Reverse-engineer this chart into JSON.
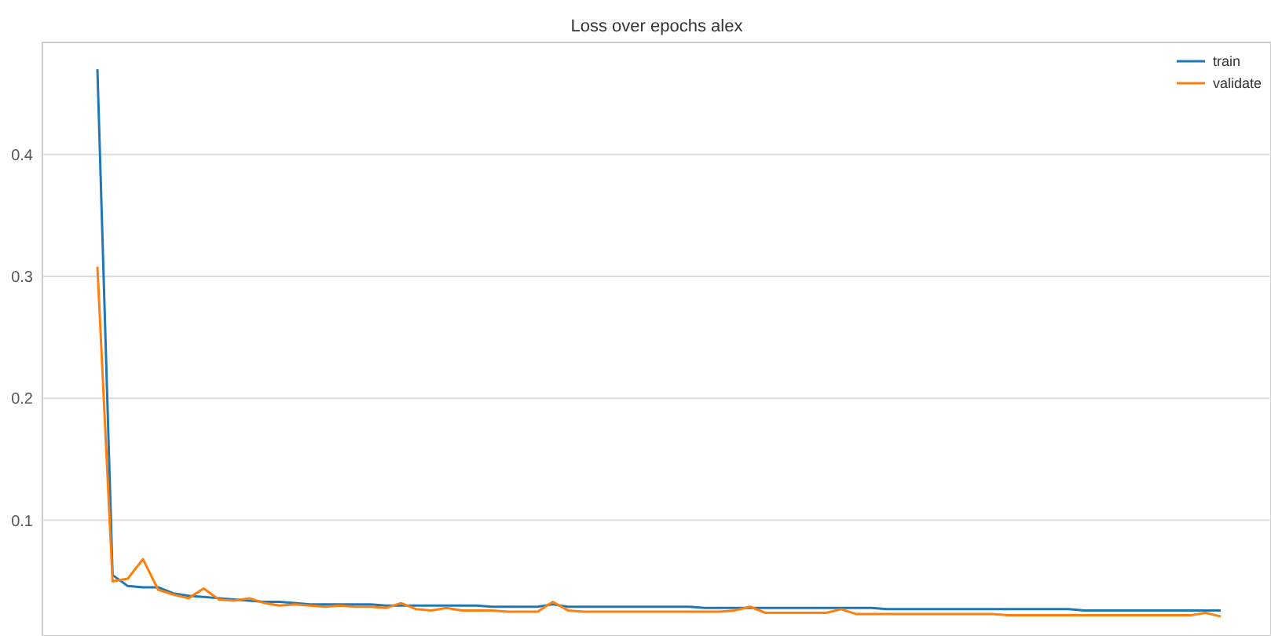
{
  "chart_data": {
    "type": "line",
    "title": "Loss over epochs alex",
    "categories": [
      null,
      null,
      null,
      null,
      null,
      null,
      null,
      null,
      null,
      null,
      null,
      null,
      null,
      null,
      null,
      null,
      null,
      null,
      null,
      null,
      null,
      null,
      null,
      null,
      null,
      null,
      null,
      null,
      null,
      null,
      null,
      null,
      null,
      null,
      null,
      null,
      null,
      null,
      null,
      null,
      null,
      null,
      null,
      null,
      null,
      null,
      null,
      null,
      null,
      null,
      null,
      null,
      null,
      null,
      null,
      null,
      null,
      null,
      null,
      null,
      null,
      null,
      null,
      null,
      null,
      null,
      null,
      null,
      null,
      null,
      null,
      null,
      null,
      null,
      null
    ],
    "ylim": [
      0.005,
      0.492
    ],
    "yticks": [
      0.1,
      0.2,
      0.3,
      0.4
    ],
    "grid": "y",
    "legend": "top right",
    "series": [
      {
        "name": "train",
        "color": "#1f77b4",
        "values": [
          0.47,
          0.055,
          0.046,
          0.045,
          0.045,
          0.04,
          0.038,
          0.037,
          0.036,
          0.035,
          0.034,
          0.033,
          0.033,
          0.032,
          0.031,
          0.031,
          0.031,
          0.031,
          0.031,
          0.03,
          0.03,
          0.03,
          0.03,
          0.03,
          0.03,
          0.03,
          0.029,
          0.029,
          0.029,
          0.029,
          0.031,
          0.029,
          0.029,
          0.029,
          0.029,
          0.029,
          0.029,
          0.029,
          0.029,
          0.029,
          0.028,
          0.028,
          0.028,
          0.028,
          0.028,
          0.028,
          0.028,
          0.028,
          0.028,
          0.028,
          0.028,
          0.028,
          0.027,
          0.027,
          0.027,
          0.027,
          0.027,
          0.027,
          0.027,
          0.027,
          0.027,
          0.027,
          0.027,
          0.027,
          0.027,
          0.026,
          0.026,
          0.026,
          0.026,
          0.026,
          0.026,
          0.026,
          0.026,
          0.026,
          0.026
        ]
      },
      {
        "name": "validate",
        "color": "#ff7f0e",
        "values": [
          0.308,
          0.05,
          0.052,
          0.068,
          0.043,
          0.039,
          0.036,
          0.044,
          0.035,
          0.034,
          0.036,
          0.032,
          0.03,
          0.031,
          0.03,
          0.029,
          0.03,
          0.029,
          0.029,
          0.028,
          0.032,
          0.027,
          0.026,
          0.028,
          0.026,
          0.026,
          0.026,
          0.025,
          0.025,
          0.025,
          0.033,
          0.026,
          0.025,
          0.025,
          0.025,
          0.025,
          0.025,
          0.025,
          0.025,
          0.025,
          0.025,
          0.025,
          0.026,
          0.029,
          0.024,
          0.024,
          0.024,
          0.024,
          0.024,
          0.027,
          0.023,
          0.023,
          0.023,
          0.023,
          0.023,
          0.023,
          0.023,
          0.023,
          0.023,
          0.023,
          0.022,
          0.022,
          0.022,
          0.022,
          0.022,
          0.022,
          0.022,
          0.022,
          0.022,
          0.022,
          0.022,
          0.022,
          0.022,
          0.024,
          0.021
        ]
      }
    ]
  }
}
